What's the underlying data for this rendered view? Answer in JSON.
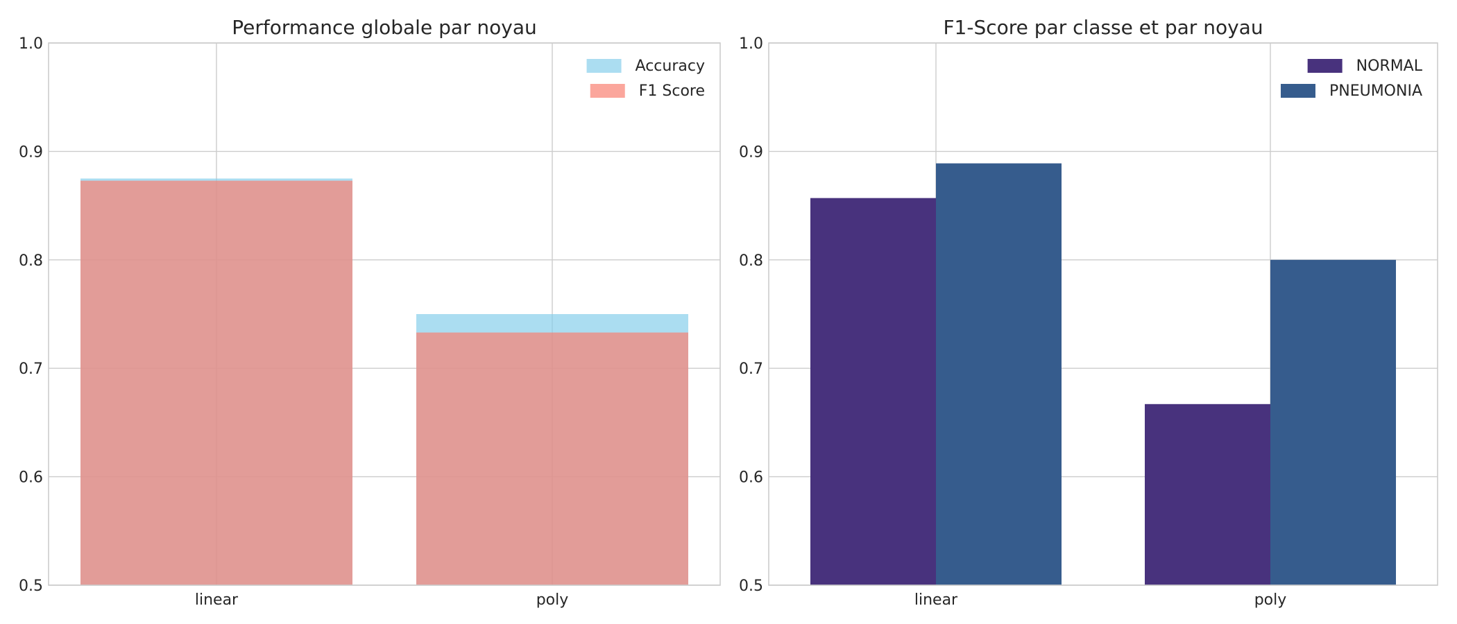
{
  "chart_data": [
    {
      "type": "bar",
      "title": "Performance globale par noyau",
      "xlabel": "",
      "ylabel": "",
      "categories": [
        "linear",
        "poly"
      ],
      "ylim": [
        0.5,
        1.0
      ],
      "yticks": [
        "0.5",
        "0.6",
        "0.7",
        "0.8",
        "0.9",
        "1.0"
      ],
      "grid": true,
      "legend_position": "top-right",
      "bar_mode": "overlay",
      "series": [
        {
          "name": "Accuracy",
          "values": [
            0.875,
            0.75
          ],
          "color": "#87ceeb",
          "opacity": 0.7
        },
        {
          "name": "F1 Score",
          "values": [
            0.873,
            0.733
          ],
          "color": "#fa8072",
          "opacity": 0.7
        }
      ]
    },
    {
      "type": "bar",
      "title": "F1-Score par classe et par noyau",
      "xlabel": "",
      "ylabel": "",
      "categories": [
        "linear",
        "poly"
      ],
      "ylim": [
        0.5,
        1.0
      ],
      "yticks": [
        "0.5",
        "0.6",
        "0.7",
        "0.8",
        "0.9",
        "1.0"
      ],
      "grid": true,
      "legend_position": "top-right",
      "bar_mode": "grouped",
      "series": [
        {
          "name": "NORMAL",
          "values": [
            0.857,
            0.667
          ],
          "color": "#48327d",
          "opacity": 1
        },
        {
          "name": "PNEUMONIA",
          "values": [
            0.889,
            0.8
          ],
          "color": "#365c8d",
          "opacity": 1
        }
      ]
    }
  ]
}
